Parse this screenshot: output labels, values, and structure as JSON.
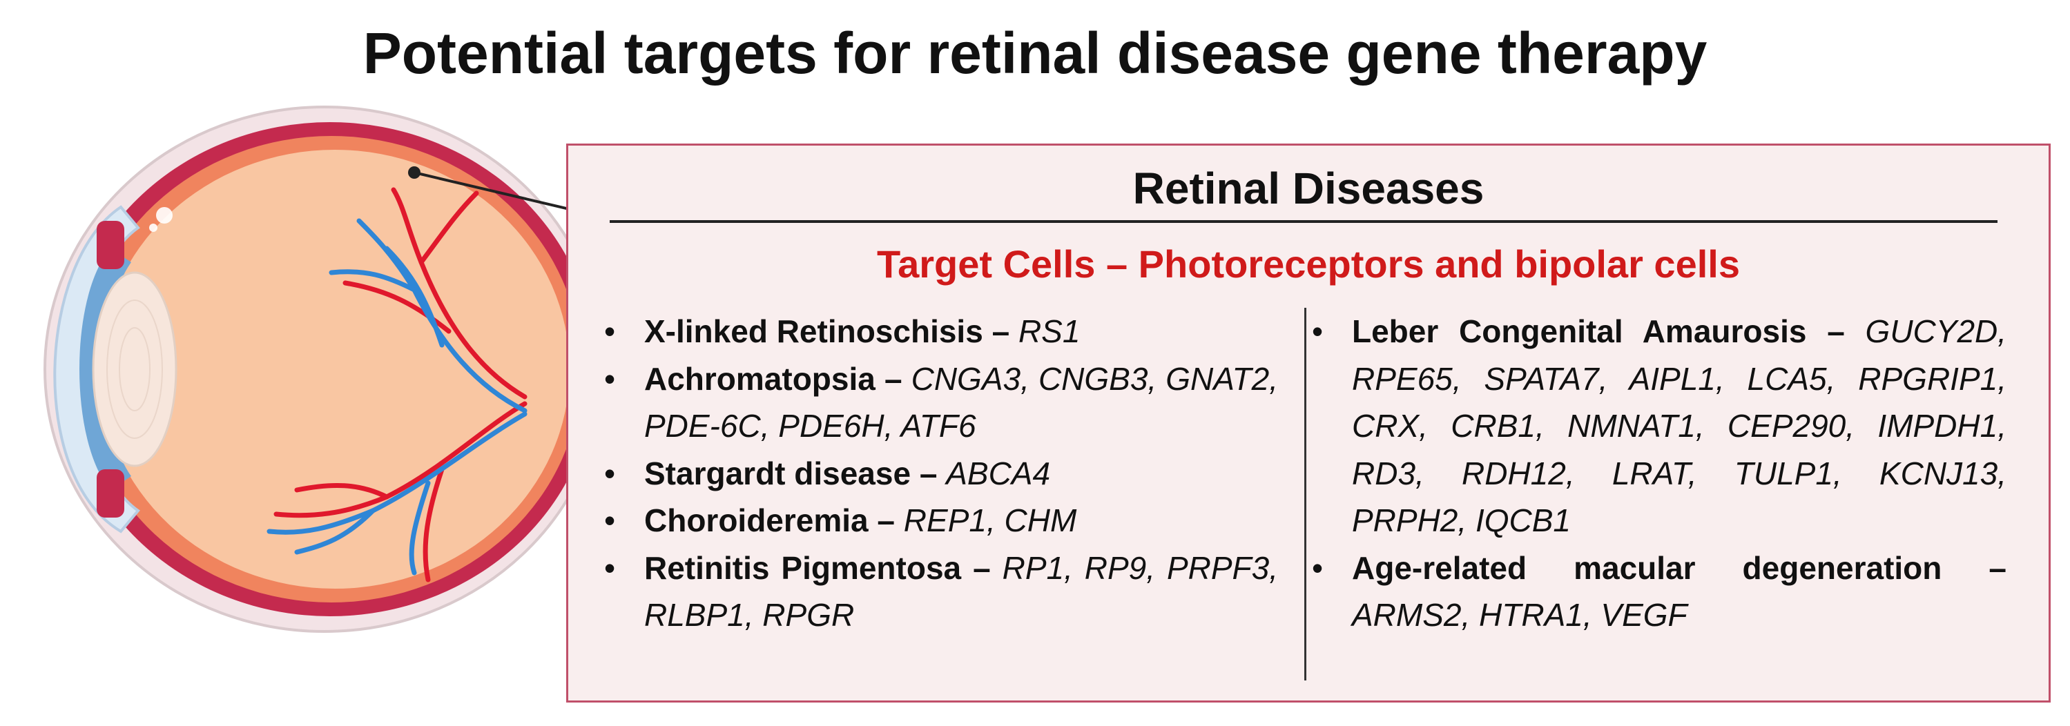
{
  "title": "Potential targets for retinal disease gene therapy",
  "panel": {
    "heading": "Retinal Diseases",
    "subheading": "Target Cells – Photoreceptors and bipolar cells"
  },
  "left_column": [
    {
      "disease": "X-linked Retinoschisis",
      "separator": "–",
      "genes": "RS1"
    },
    {
      "disease": "Achromatopsia",
      "separator": "–",
      "genes": "CNGA3, CNGB3, GNAT2, PDE-6C, PDE6H, ATF6"
    },
    {
      "disease": "Stargardt disease",
      "separator": "–",
      "genes": "ABCA4"
    },
    {
      "disease": "Choroideremia",
      "separator": "–",
      "genes": "REP1, CHM"
    },
    {
      "disease": "Retinitis Pigmentosa",
      "separator": "–",
      "genes": "RP1, RP9, PRPF3, RLBP1, RPGR"
    }
  ],
  "right_column": [
    {
      "disease": "Leber Congenital Amaurosis",
      "separator": "–",
      "genes": "GUCY2D, RPE65, SPATA7, AIPL1, LCA5, RPGRIP1, CRX, CRB1, NMNAT1, CEP290, IMPDH1, RD3, RDH12, LRAT, TULP1, KCNJ13, PRPH2, IQCB1"
    },
    {
      "disease": "Age-related macular degeneration",
      "separator": "–",
      "genes": "ARMS2, HTRA1, VEGF"
    }
  ],
  "colors": {
    "subheading": "#d01a1a",
    "panel_fill": "#f9eeee",
    "panel_border": "#c0506a",
    "sclera": "#c42a4e",
    "choroid": "#f0845e",
    "retina": "#f9c6a2",
    "cornea": "#6fa6d6",
    "artery": "#e0182c",
    "vein": "#2f86d6"
  }
}
